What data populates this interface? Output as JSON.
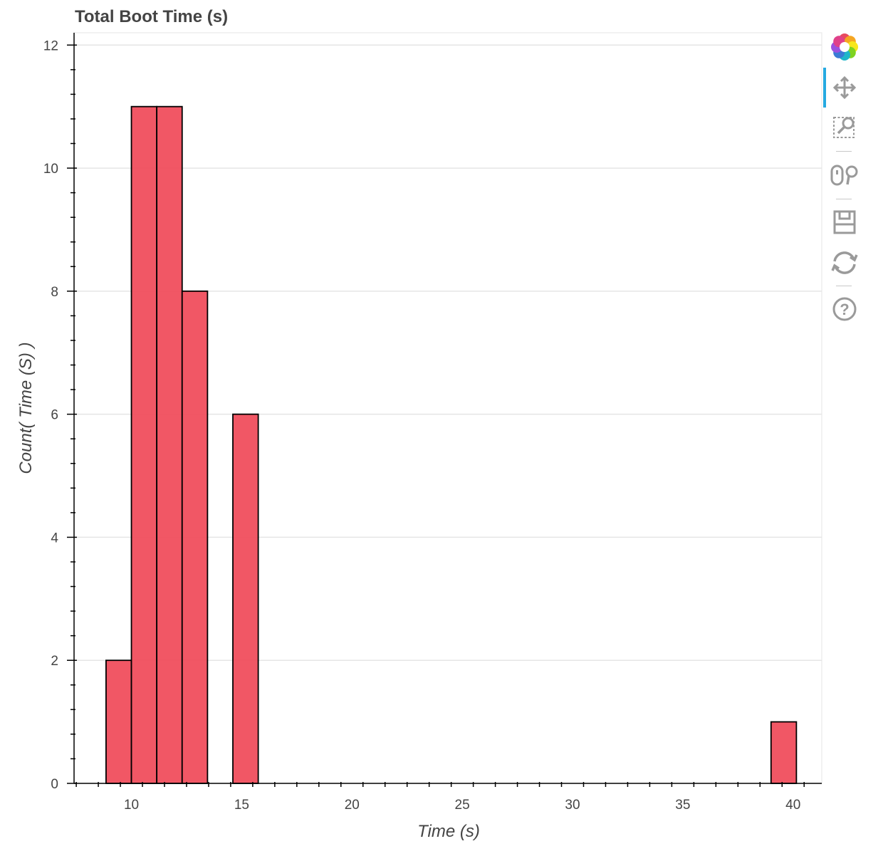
{
  "chart_data": {
    "type": "bar",
    "title": "Total Boot Time (s)",
    "xlabel": "Time (s)",
    "ylabel": "Count( Time (S) )",
    "xlim": [
      7.4,
      41.3
    ],
    "ylim": [
      0,
      12
    ],
    "x_ticks": [
      10,
      15,
      20,
      25,
      30,
      35,
      40
    ],
    "y_ticks": [
      0,
      2,
      4,
      6,
      8,
      10,
      12
    ],
    "grid": true,
    "bar_color": "#f0505f",
    "bar_edge_color": "#000000",
    "bins": [
      {
        "x0": 8.85,
        "x1": 10.0,
        "count": 2
      },
      {
        "x0": 10.0,
        "x1": 11.15,
        "count": 11
      },
      {
        "x0": 11.15,
        "x1": 12.3,
        "count": 11
      },
      {
        "x0": 12.3,
        "x1": 13.45,
        "count": 8
      },
      {
        "x0": 14.6,
        "x1": 15.75,
        "count": 6
      },
      {
        "x0": 39.0,
        "x1": 40.15,
        "count": 1
      }
    ]
  },
  "toolbar": {
    "logo_icon": "bokeh-logo-icon",
    "tools": [
      "pan-icon",
      "box-zoom-icon",
      "wheel-zoom-icon",
      "save-icon",
      "reset-icon",
      "help-icon"
    ],
    "active_color": "#26aae1"
  }
}
